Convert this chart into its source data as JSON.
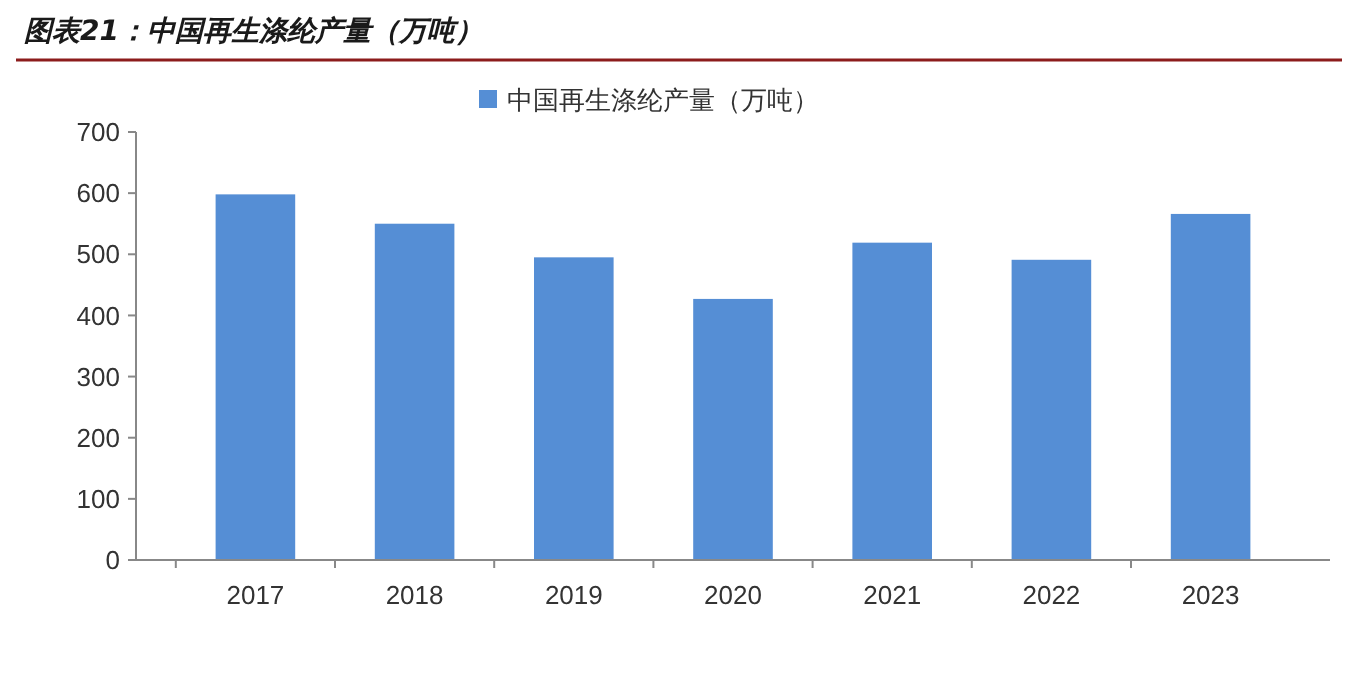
{
  "chart_data": {
    "type": "bar",
    "title": "图表21：中国再生涤纶产量（万吨）",
    "categories": [
      "2017",
      "2018",
      "2019",
      "2020",
      "2021",
      "2022",
      "2023"
    ],
    "series": [
      {
        "name": "中国再生涤纶产量（万吨）",
        "color": "#558ed5",
        "values": [
          598,
          550,
          495,
          427,
          519,
          491,
          566
        ]
      }
    ],
    "ylim": [
      0,
      700
    ],
    "yticks": [
      0,
      100,
      200,
      300,
      400,
      500,
      600,
      700
    ],
    "grid": false,
    "legend": "top"
  }
}
